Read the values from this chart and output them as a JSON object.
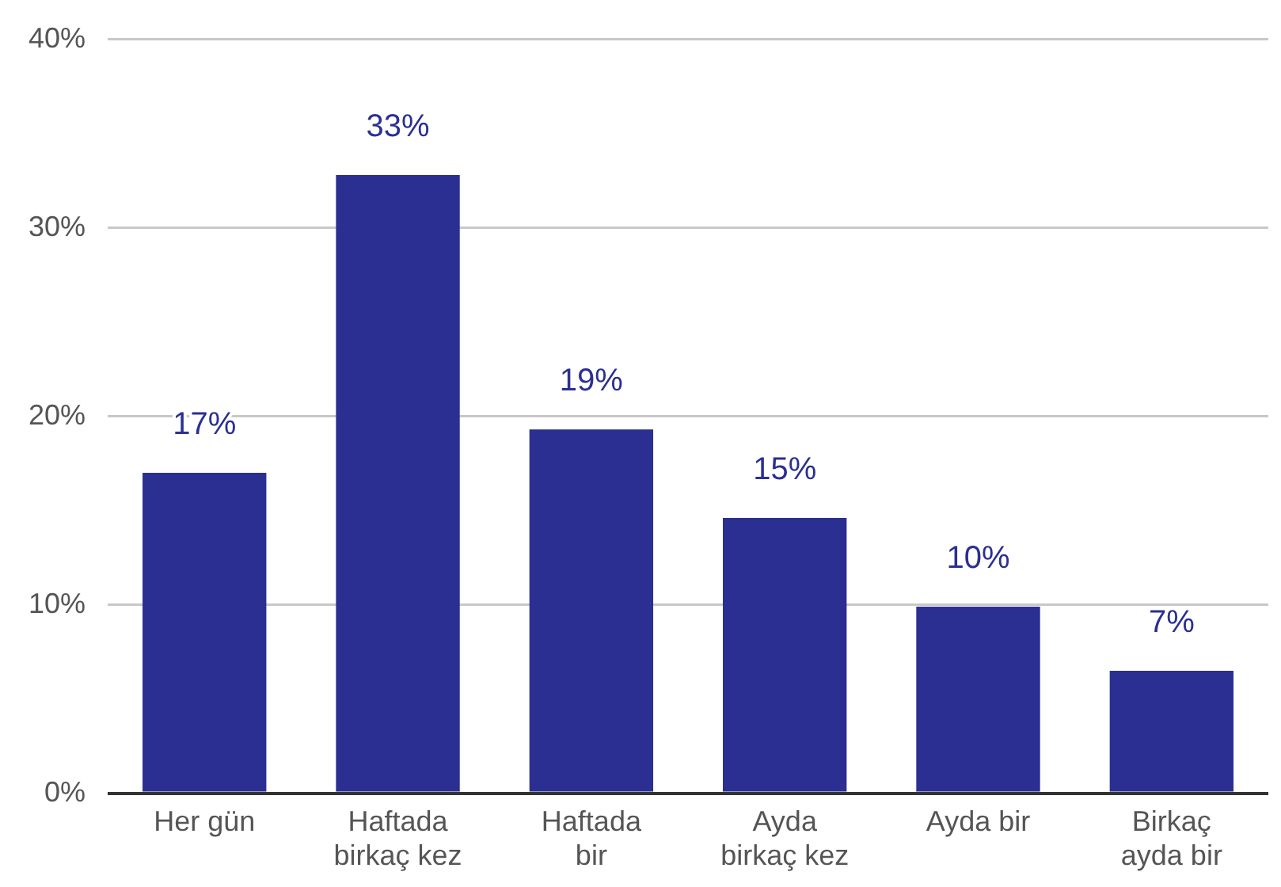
{
  "chart_data": {
    "type": "bar",
    "categories": [
      "Her gün",
      "Haftada birkaç kez",
      "Haftada bir",
      "Ayda birkaç kez",
      "Ayda bir",
      "Birkaç ayda bir"
    ],
    "values": [
      17,
      32.8,
      19.3,
      14.6,
      9.9,
      6.5
    ],
    "value_labels": [
      "17%",
      "33%",
      "19%",
      "15%",
      "10%",
      "7%"
    ],
    "color": "#2b2f92",
    "ylim": [
      0,
      40
    ],
    "yticks": [
      {
        "value": 0,
        "label": "0%"
      },
      {
        "value": 10,
        "label": "10%"
      },
      {
        "value": 20,
        "label": "20%"
      },
      {
        "value": 30,
        "label": "30%"
      },
      {
        "value": 40,
        "label": "40%"
      }
    ],
    "grid": "y",
    "legend": false
  }
}
